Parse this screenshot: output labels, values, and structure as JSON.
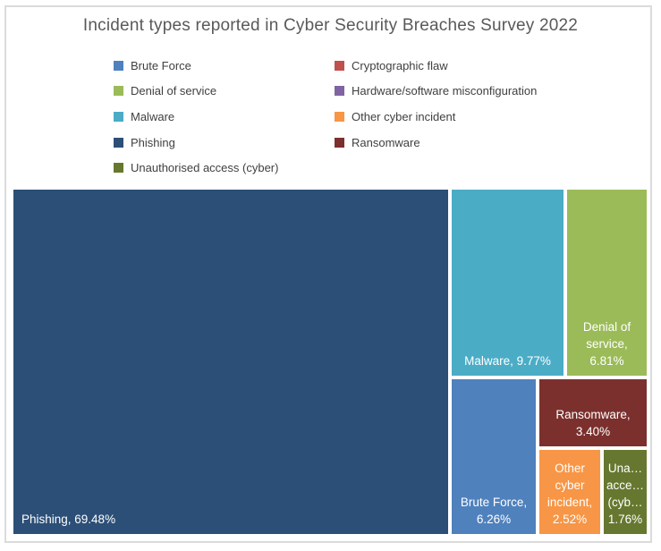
{
  "title": "Incident types reported in Cyber Security Breaches Survey 2022",
  "colors": {
    "title_text": "#595959",
    "legend_text": "#3F3F3F",
    "tile_label_text": "#FFFFFF",
    "frame_border": "#DBDBDB",
    "background": "#FFFFFF"
  },
  "chart_data": {
    "type": "treemap",
    "title": "Incident types reported in Cyber Security Breaches Survey 2022",
    "unit": "percent",
    "legend_position": "top",
    "legend": [
      {
        "label": "Brute Force",
        "color": "#4F81BD"
      },
      {
        "label": "Cryptographic flaw",
        "color": "#C0504D"
      },
      {
        "label": "Denial of service",
        "color": "#9BBB59"
      },
      {
        "label": "Hardware/software misconfiguration",
        "color": "#8064A2"
      },
      {
        "label": "Malware",
        "color": "#4BACC6"
      },
      {
        "label": "Other cyber incident",
        "color": "#F79646"
      },
      {
        "label": "Phishing",
        "color": "#2C4F77"
      },
      {
        "label": "Ransomware",
        "color": "#7B302D"
      },
      {
        "label": "Unauthorised access (cyber)",
        "color": "#66782F"
      }
    ],
    "tiles": [
      {
        "name": "Phishing",
        "value": 69.48,
        "color": "#2C4F77",
        "label": "Phishing, 69.48%"
      },
      {
        "name": "Malware",
        "value": 9.77,
        "color": "#4BACC6",
        "label": "Malware, 9.77%"
      },
      {
        "name": "Denial of service",
        "value": 6.81,
        "color": "#9BBB59",
        "label": "Denial of\nservice,\n6.81%"
      },
      {
        "name": "Brute Force",
        "value": 6.26,
        "color": "#4F81BD",
        "label": "Brute Force,\n6.26%"
      },
      {
        "name": "Ransomware",
        "value": 3.4,
        "color": "#7B302D",
        "label": "Ransomware,\n3.40%"
      },
      {
        "name": "Other cyber incident",
        "value": 2.52,
        "color": "#F79646",
        "label": "Other\ncyber\nincident,\n2.52%"
      },
      {
        "name": "Unauthorised access (cyber)",
        "value": 1.76,
        "color": "#66782F",
        "label": "Una…\nacce…\n(cyb…\n1.76%"
      }
    ]
  }
}
